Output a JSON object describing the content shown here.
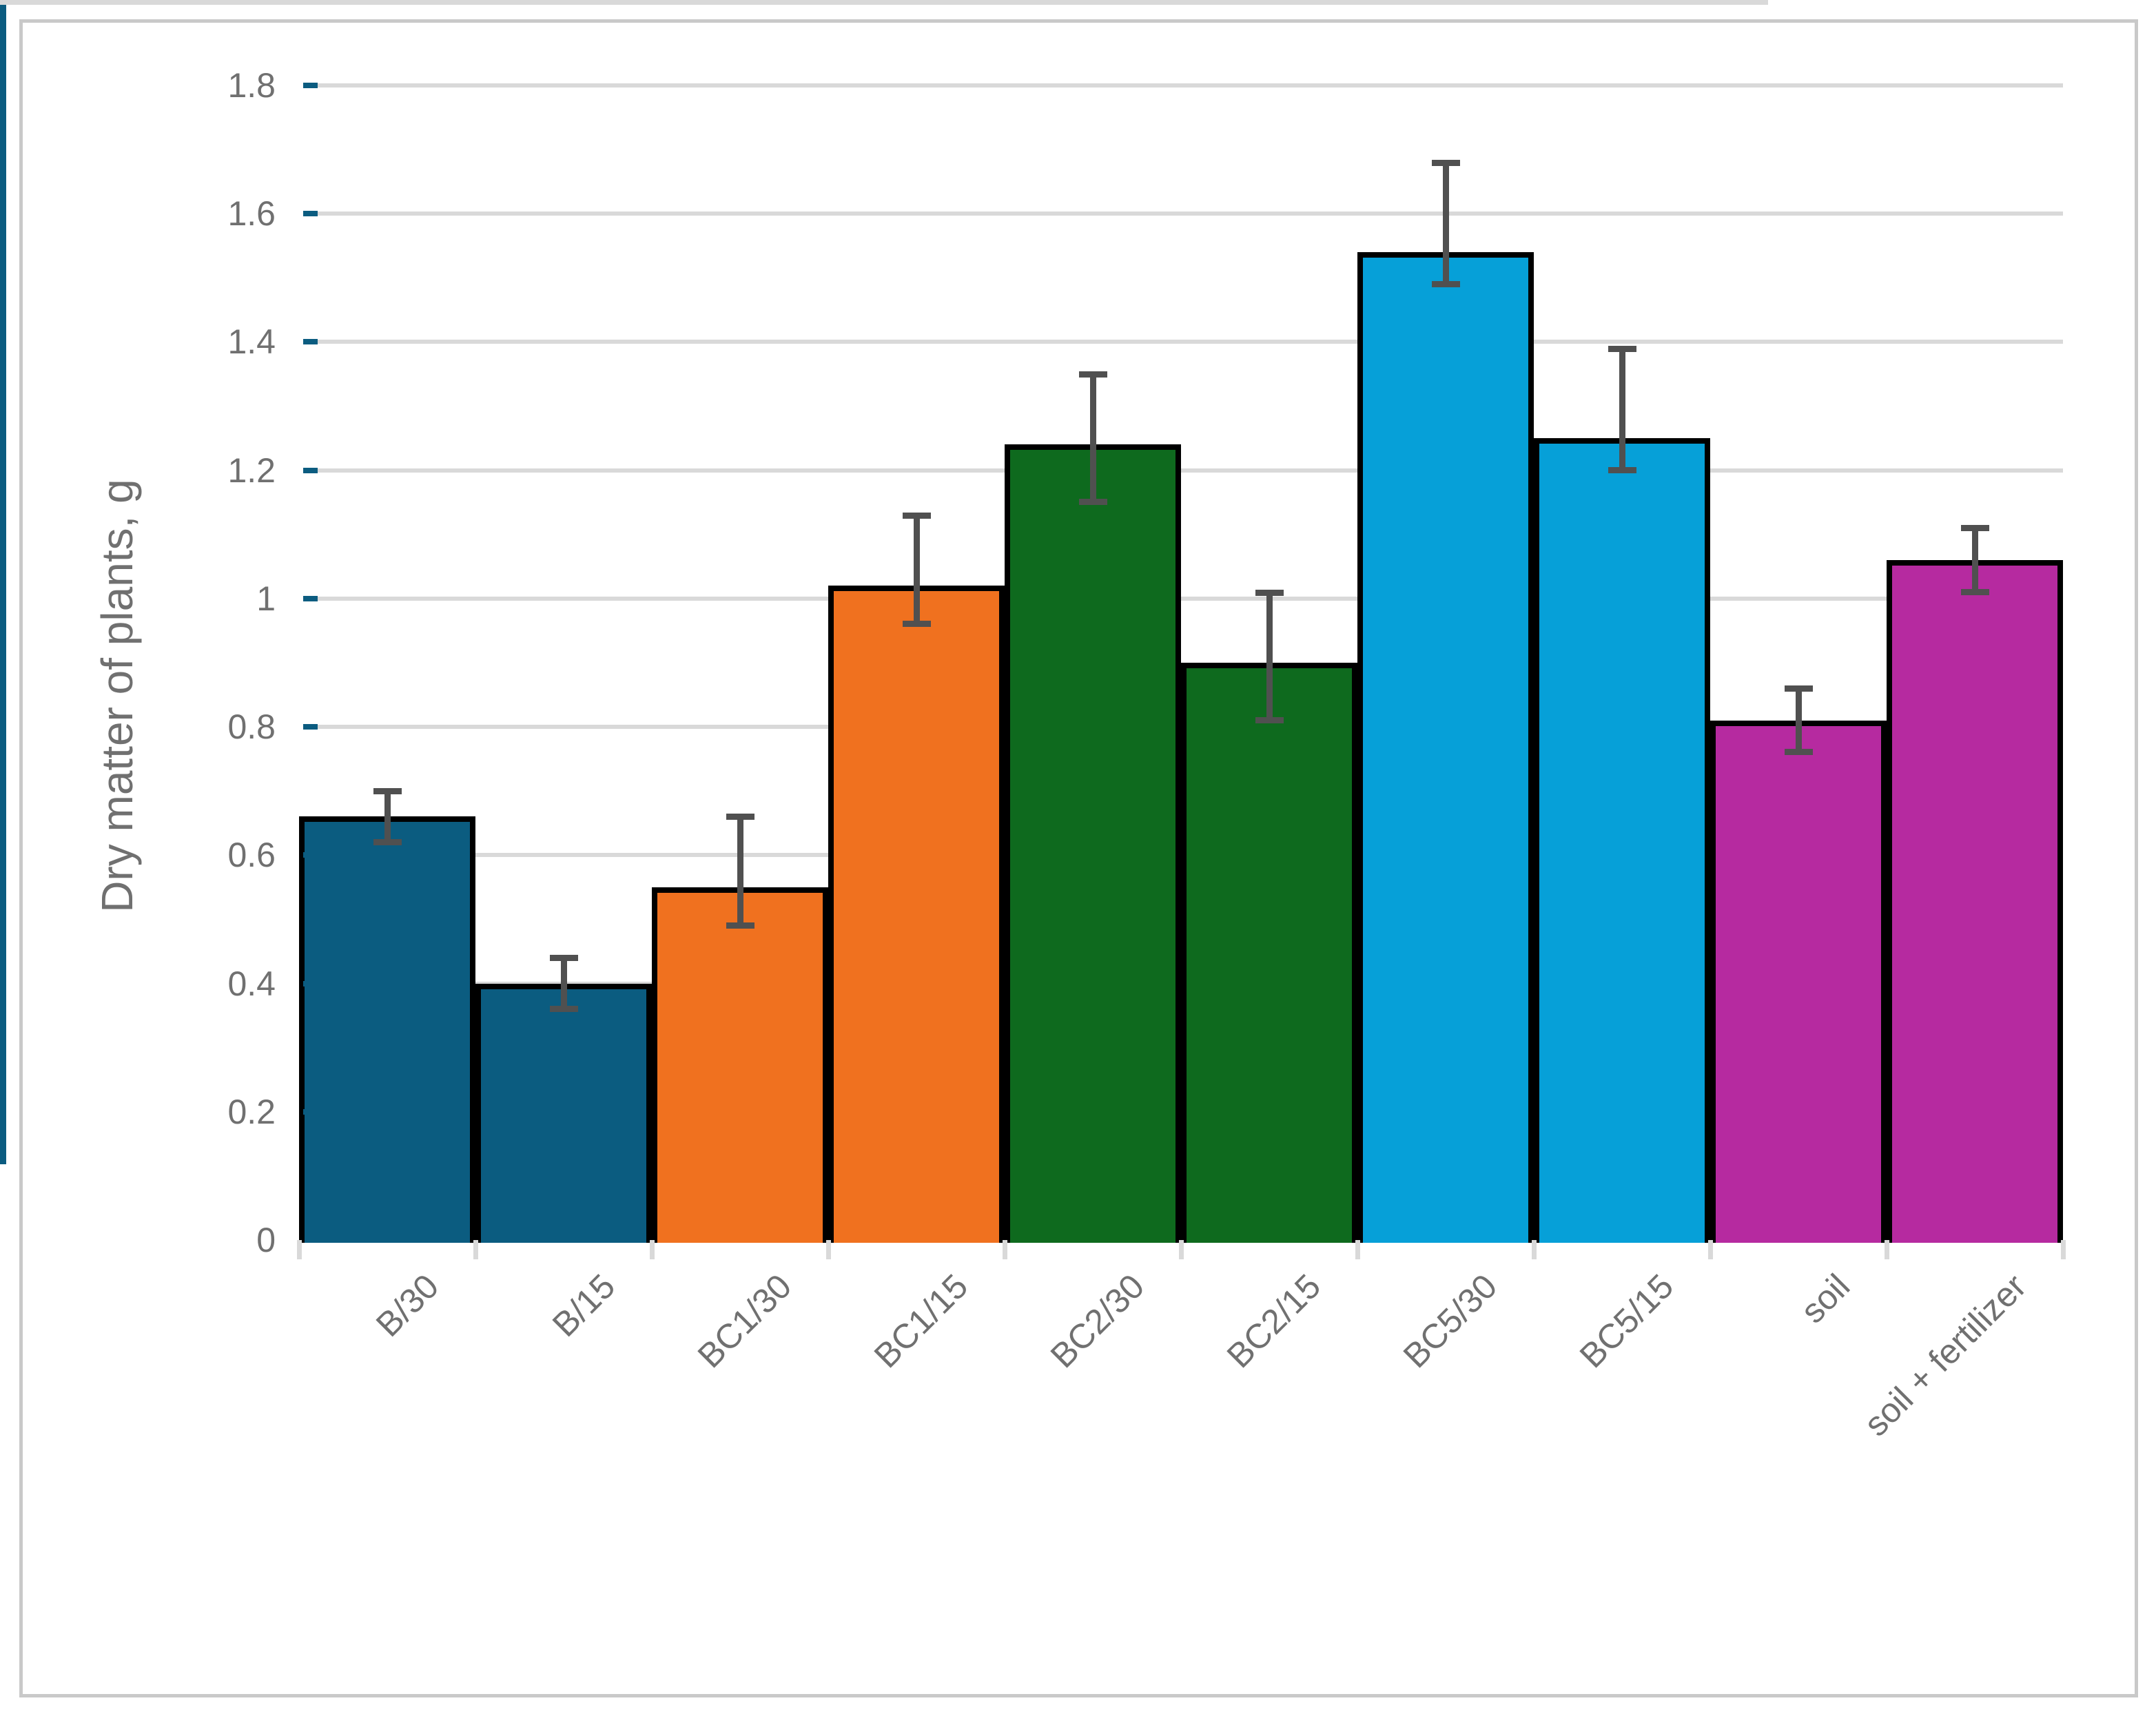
{
  "figure": {
    "background": "#FFFFFF",
    "border_color": "#C9C9C9"
  },
  "chart_data": {
    "type": "bar",
    "title": "",
    "ylabel": "Dry matter of plants, g",
    "xlabel": "",
    "ylim": [
      0,
      1.8
    ],
    "ytick_step": 0.2,
    "ytick_labels": [
      "0",
      "0.2",
      "0.4",
      "0.6",
      "0.8",
      "1",
      "1.2",
      "1.4",
      "1.6",
      "1.8"
    ],
    "grid": "horizontal",
    "legend": "none",
    "categories": [
      "B/30",
      "B/15",
      "BC1/30",
      "BC1/15",
      "BC2/30",
      "BC2/15",
      "BC5/30",
      "BC5/15",
      "soil",
      "soil + fertilizer"
    ],
    "values": [
      0.66,
      0.4,
      0.55,
      1.02,
      1.24,
      0.9,
      1.54,
      1.25,
      0.81,
      1.06
    ],
    "error_whisker_low": [
      0.62,
      0.36,
      0.49,
      0.96,
      1.15,
      0.81,
      1.49,
      1.2,
      0.76,
      1.01
    ],
    "error_whisker_high": [
      0.7,
      0.44,
      0.66,
      1.13,
      1.35,
      1.01,
      1.68,
      1.39,
      0.86,
      1.11
    ],
    "bar_colors": [
      "#0B5C80",
      "#0B5C80",
      "#F0711F",
      "#F0711F",
      "#0E6A1E",
      "#0E6A1E",
      "#06A0D8",
      "#06A0D8",
      "#B62AA0",
      "#B62AA0"
    ],
    "colors": {
      "gridline": "#D9D9D9",
      "x_axis_line": "#D9D9D9",
      "y_axis_line": "#0B5C80",
      "error_bar": "#505050",
      "bar_border": "#000000",
      "label_text": "#707070"
    }
  }
}
